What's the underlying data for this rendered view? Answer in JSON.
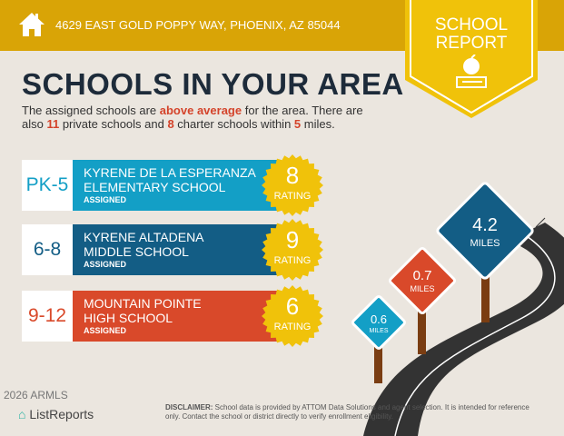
{
  "header": {
    "address": "4629 EAST GOLD POPPY WAY, PHOENIX, AZ 85044",
    "icon": "home-icon"
  },
  "badge": {
    "line1": "SCHOOL",
    "line2": "REPORT",
    "icon": "apple-books-icon"
  },
  "title": "SCHOOLS IN YOUR AREA",
  "intro": {
    "p1": "The assigned schools are ",
    "hl1": "above average",
    "p2": " for the area. There are also ",
    "hl2": "11",
    "p3": " private schools and ",
    "hl3": "8",
    "p4": " charter schools within ",
    "hl4": "5",
    "p5": " miles."
  },
  "schools": [
    {
      "grade": "PK-5",
      "name1": "KYRENE DE LA ESPERANZA",
      "name2": "ELEMENTARY SCHOOL",
      "status": "ASSIGNED",
      "rating": "8",
      "rating_label": "RATING",
      "color": "#139fc6"
    },
    {
      "grade": "6-8",
      "name1": "KYRENE ALTADENA",
      "name2": "MIDDLE SCHOOL",
      "status": "ASSIGNED",
      "rating": "9",
      "rating_label": "RATING",
      "color": "#135d85"
    },
    {
      "grade": "9-12",
      "name1": "MOUNTAIN POINTE",
      "name2": "HIGH SCHOOL",
      "status": "ASSIGNED",
      "rating": "6",
      "rating_label": "RATING",
      "color": "#d9492a"
    }
  ],
  "signs": [
    {
      "distance": "0.6",
      "unit": "MILES",
      "color": "#139fc6"
    },
    {
      "distance": "0.7",
      "unit": "MILES",
      "color": "#d9492a"
    },
    {
      "distance": "4.2",
      "unit": "MILES",
      "color": "#135d85"
    }
  ],
  "footer": {
    "logo": "ListReports",
    "watermark": "2026 ARMLS",
    "disclaimer_label": "DISCLAIMER:",
    "disclaimer": " School data is provided by ATTOM Data Solutions and agent selection. It is intended for reference only. Contact the school or district directly to verify enrollment eligibility."
  },
  "colors": {
    "header": "#d9a406",
    "badge": "#f0c20a",
    "title": "#1d2b3a",
    "highlight": "#d4432a"
  }
}
